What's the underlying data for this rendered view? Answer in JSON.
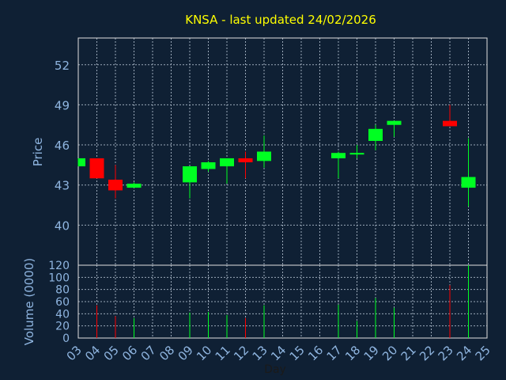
{
  "chart_data": {
    "type": "candlestick",
    "title": "KNSA - last updated 24/02/2026",
    "price_ylabel": "Price",
    "volume_ylabel": "Volume (0000)",
    "xlabel": "Day",
    "categories": [
      "03",
      "04",
      "05",
      "06",
      "07",
      "08",
      "09",
      "10",
      "11",
      "12",
      "13",
      "14",
      "15",
      "16",
      "17",
      "18",
      "19",
      "20",
      "21",
      "22",
      "23",
      "24",
      "25"
    ],
    "price_ylim": [
      37,
      54
    ],
    "price_ticks": [
      40,
      43,
      46,
      49,
      52
    ],
    "volume_ylim": [
      0,
      120
    ],
    "volume_ticks": [
      0,
      20,
      40,
      60,
      80,
      100,
      120
    ],
    "grid": true,
    "colors": {
      "up": "#00ff22",
      "down": "#ff0000",
      "background": "#0f2034",
      "plot_border": "#e0e0e0"
    },
    "series": [
      {
        "day": "03",
        "open": 44.4,
        "high": 45.0,
        "low": 44.4,
        "close": 45.0,
        "volume": 0
      },
      {
        "day": "04",
        "open": 45.0,
        "high": 45.0,
        "low": 43.5,
        "close": 43.5,
        "volume": 54
      },
      {
        "day": "05",
        "open": 43.4,
        "high": 44.5,
        "low": 42.0,
        "close": 42.6,
        "volume": 36
      },
      {
        "day": "06",
        "open": 42.8,
        "high": 43.2,
        "low": 42.8,
        "close": 43.1,
        "volume": 33
      },
      {
        "day": "09",
        "open": 43.2,
        "high": 44.4,
        "low": 42.0,
        "close": 44.4,
        "volume": 42
      },
      {
        "day": "10",
        "open": 44.2,
        "high": 44.8,
        "low": 44.0,
        "close": 44.7,
        "volume": 43
      },
      {
        "day": "11",
        "open": 44.4,
        "high": 45.0,
        "low": 43.1,
        "close": 45.0,
        "volume": 38
      },
      {
        "day": "12",
        "open": 45.0,
        "high": 45.5,
        "low": 43.5,
        "close": 44.7,
        "volume": 33
      },
      {
        "day": "13",
        "open": 44.8,
        "high": 46.7,
        "low": 44.3,
        "close": 45.5,
        "volume": 54
      },
      {
        "day": "17",
        "open": 45.0,
        "high": 45.5,
        "low": 43.5,
        "close": 45.4,
        "volume": 55
      },
      {
        "day": "18",
        "open": 45.3,
        "high": 46.0,
        "low": 45.0,
        "close": 45.4,
        "volume": 28
      },
      {
        "day": "19",
        "open": 46.3,
        "high": 47.5,
        "low": 45.6,
        "close": 47.2,
        "volume": 66
      },
      {
        "day": "20",
        "open": 47.5,
        "high": 47.8,
        "low": 46.6,
        "close": 47.8,
        "volume": 50
      },
      {
        "day": "23",
        "open": 47.8,
        "high": 49.0,
        "low": 47.4,
        "close": 47.4,
        "volume": 87
      },
      {
        "day": "24",
        "open": 42.8,
        "high": 46.5,
        "low": 41.4,
        "close": 43.6,
        "volume": 122
      }
    ]
  }
}
